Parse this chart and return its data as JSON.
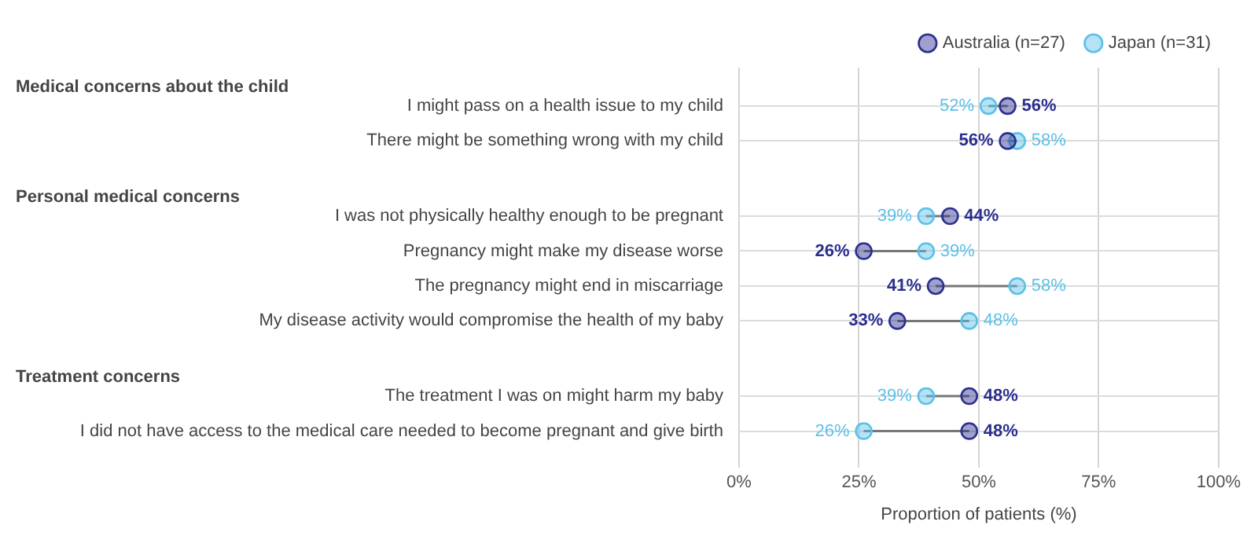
{
  "chart_data": {
    "type": "scatter",
    "xlabel": "Proportion of patients (%)",
    "categories": [
      null,
      "I might pass on a health issue to my child",
      "There might be something wrong with my child",
      null,
      "I was not physically healthy enough to be pregnant",
      "Pregnancy might make my disease worse",
      "The pregnancy might end in miscarriage",
      "My disease activity would compromise the health of my baby",
      null,
      "The treatment I was on might harm my baby",
      "I did not have access to the medical care needed to become pregnant and give birth"
    ],
    "series": [
      {
        "name": "Australia (n=27)",
        "color": "#2b2f8f",
        "values": [
          null,
          56,
          56,
          null,
          44,
          26,
          41,
          33,
          null,
          48,
          48
        ],
        "value_labels": [
          null,
          "56%",
          "56%",
          null,
          "44%",
          "26%",
          "41%",
          "33%",
          null,
          "48%",
          "48%"
        ]
      },
      {
        "name": "Japan (n=31)",
        "color": "#5bc0e8",
        "values": [
          null,
          52,
          58,
          null,
          39,
          39,
          58,
          48,
          null,
          39,
          26
        ],
        "value_labels": [
          null,
          "52%",
          "58%",
          null,
          "39%",
          "39%",
          "58%",
          "48%",
          null,
          "39%",
          "26%"
        ]
      }
    ],
    "xlim": [
      0,
      100
    ],
    "xticks": [
      {
        "value": 0,
        "label": "0%"
      },
      {
        "value": 25,
        "label": "25%"
      },
      {
        "value": 50,
        "label": "50%"
      },
      {
        "value": 75,
        "label": "75%"
      },
      {
        "value": 100,
        "label": "100%"
      }
    ],
    "annotations": [
      "Medical concerns about the child",
      "Personal medical concerns",
      "Treatment concerns"
    ],
    "grid": true,
    "legend": "top right",
    "marker": "circle",
    "orientation": "horizontal"
  }
}
